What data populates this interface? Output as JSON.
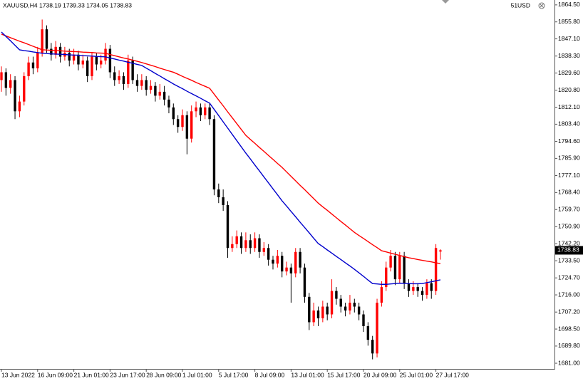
{
  "chart_data": {
    "type": "candlestick",
    "title": "XAUUSD,H4 1738.19 1739.33 1734.05 1738.83",
    "corner_label": "51USD",
    "categories": [
      "13 Jun 2022",
      null,
      null,
      null,
      null,
      null,
      null,
      null,
      "16 Jun 09:00",
      null,
      null,
      null,
      null,
      null,
      null,
      null,
      "21 Jun 01:00",
      null,
      null,
      null,
      null,
      null,
      null,
      null,
      "23 Jun 17:00",
      null,
      null,
      null,
      null,
      null,
      null,
      null,
      "28 Jun 09:00",
      null,
      null,
      null,
      null,
      null,
      null,
      null,
      "1 Jul 01:00",
      null,
      null,
      null,
      null,
      null,
      null,
      null,
      "5 Jul 17:00",
      null,
      null,
      null,
      null,
      null,
      null,
      null,
      "8 Jul 09:00",
      null,
      null,
      null,
      null,
      null,
      null,
      null,
      "13 Jul 01:00",
      null,
      null,
      null,
      null,
      null,
      null,
      null,
      "15 Jul 17:00",
      null,
      null,
      null,
      null,
      null,
      null,
      null,
      "20 Jul 09:00",
      null,
      null,
      null,
      null,
      null,
      null,
      null,
      "25 Jul 01:00",
      null,
      null,
      null,
      null,
      null,
      null,
      null,
      "27 Jul 17:00",
      null
    ],
    "open": [
      1826,
      1830,
      1822,
      1826,
      1810,
      1815,
      1828,
      1835,
      1832,
      1840,
      1852,
      1842,
      1839,
      1843,
      1838,
      1840,
      1836,
      1839,
      1834,
      1836,
      1828,
      1838,
      1834,
      1836,
      1842,
      1830,
      1826,
      1828,
      1824,
      1836,
      1826,
      1823,
      1826,
      1821,
      1823,
      1818,
      1820,
      1816,
      1812,
      1806,
      1802,
      1808,
      1796,
      1810,
      1812,
      1808,
      1812,
      1806,
      1770,
      1766,
      1762,
      1740,
      1742,
      1746,
      1740,
      1744,
      1740,
      1745,
      1738,
      1740,
      1734,
      1732,
      1736,
      1728,
      1730,
      1727,
      1738,
      1730,
      1715,
      1702,
      1708,
      1704,
      1710,
      1706,
      1718,
      1714,
      1710,
      1708,
      1712,
      1710,
      1706,
      1700,
      1693,
      1686,
      1712,
      1720,
      1730,
      1736,
      1724,
      1736,
      1722,
      1718,
      1720,
      1718,
      1716,
      1722,
      1718,
      1738.19
    ],
    "high": [
      1833,
      1832,
      1829,
      1828,
      1818,
      1830,
      1838,
      1838,
      1843,
      1857,
      1854,
      1845,
      1846,
      1845,
      1843,
      1842,
      1842,
      1841,
      1839,
      1838,
      1840,
      1840,
      1839,
      1845,
      1844,
      1833,
      1831,
      1830,
      1839,
      1838,
      1829,
      1829,
      1828,
      1826,
      1825,
      1824,
      1823,
      1818,
      1814,
      1808,
      1811,
      1810,
      1813,
      1815,
      1814,
      1814,
      1814,
      1808,
      1773,
      1770,
      1764,
      1746,
      1749,
      1748,
      1748,
      1747,
      1748,
      1747,
      1743,
      1742,
      1736,
      1739,
      1738,
      1733,
      1732,
      1740,
      1740,
      1732,
      1717,
      1712,
      1710,
      1713,
      1712,
      1724,
      1720,
      1716,
      1712,
      1716,
      1714,
      1712,
      1708,
      1702,
      1695,
      1714,
      1723,
      1733,
      1739,
      1738,
      1738,
      1738,
      1724,
      1723,
      1722,
      1720,
      1724,
      1724,
      1742,
      1739.33
    ],
    "low": [
      1820,
      1818,
      1819,
      1806,
      1807,
      1813,
      1826,
      1829,
      1830,
      1838,
      1840,
      1836,
      1837,
      1835,
      1836,
      1833,
      1834,
      1831,
      1832,
      1825,
      1826,
      1831,
      1832,
      1834,
      1827,
      1823,
      1824,
      1821,
      1822,
      1824,
      1820,
      1821,
      1818,
      1819,
      1815,
      1816,
      1813,
      1809,
      1803,
      1799,
      1800,
      1788,
      1794,
      1807,
      1805,
      1806,
      1803,
      1767,
      1763,
      1759,
      1735,
      1738,
      1740,
      1737,
      1738,
      1737,
      1738,
      1735,
      1736,
      1731,
      1729,
      1730,
      1725,
      1726,
      1712,
      1725,
      1727,
      1712,
      1698,
      1700,
      1700,
      1702,
      1703,
      1704,
      1711,
      1707,
      1705,
      1706,
      1707,
      1703,
      1697,
      1690,
      1683,
      1684,
      1710,
      1718,
      1728,
      1721,
      1722,
      1719,
      1715,
      1716,
      1715,
      1713,
      1714,
      1714,
      1716,
      1734.05
    ],
    "close": [
      1830,
      1822,
      1826,
      1810,
      1815,
      1828,
      1835,
      1832,
      1840,
      1852,
      1842,
      1839,
      1843,
      1838,
      1840,
      1836,
      1839,
      1834,
      1836,
      1828,
      1838,
      1834,
      1836,
      1842,
      1830,
      1826,
      1828,
      1824,
      1836,
      1826,
      1823,
      1826,
      1821,
      1823,
      1818,
      1820,
      1816,
      1812,
      1806,
      1802,
      1808,
      1796,
      1810,
      1812,
      1808,
      1812,
      1806,
      1770,
      1766,
      1762,
      1740,
      1742,
      1746,
      1740,
      1744,
      1740,
      1745,
      1738,
      1740,
      1734,
      1732,
      1736,
      1728,
      1730,
      1727,
      1738,
      1730,
      1715,
      1702,
      1708,
      1704,
      1710,
      1706,
      1718,
      1714,
      1710,
      1708,
      1712,
      1710,
      1706,
      1700,
      1693,
      1686,
      1712,
      1720,
      1730,
      1736,
      1724,
      1736,
      1722,
      1718,
      1720,
      1718,
      1716,
      1722,
      1718,
      1740,
      1738.83
    ],
    "up_color": "#ff0000",
    "down_color": "#000000",
    "lines": [
      {
        "color": "#ff0000",
        "values": [
          1849.5,
          1848.6,
          1847.7,
          1846.8,
          1845.9,
          1845.1,
          1844.2,
          1843.3,
          1842.4,
          1841.5,
          1841.4,
          1841.2,
          1841.1,
          1841.0,
          1840.8,
          1840.7,
          1840.6,
          1840.5,
          1840.3,
          1840.2,
          1840.1,
          1839.9,
          1839.8,
          1839.7,
          1839.1,
          1838.5,
          1837.9,
          1837.3,
          1836.8,
          1836.2,
          1835.6,
          1835.0,
          1834.3,
          1833.6,
          1832.9,
          1832.1,
          1831.4,
          1830.7,
          1830.0,
          1829.0,
          1827.9,
          1826.9,
          1825.9,
          1824.8,
          1823.8,
          1822.8,
          1821.8,
          1818.8,
          1815.8,
          1812.8,
          1809.7,
          1806.7,
          1803.7,
          1800.7,
          1797.7,
          1795.6,
          1793.6,
          1791.5,
          1789.5,
          1787.4,
          1785.4,
          1783.3,
          1781.3,
          1779.0,
          1776.7,
          1774.4,
          1772.1,
          1769.9,
          1767.6,
          1765.3,
          1763.0,
          1761.1,
          1759.3,
          1757.4,
          1755.5,
          1753.6,
          1751.8,
          1749.9,
          1748.0,
          1746.4,
          1744.9,
          1743.3,
          1741.7,
          1740.2,
          1738.6,
          1738.0,
          1737.4,
          1736.8,
          1736.2,
          1735.6,
          1735.0,
          1734.6,
          1734.1,
          1733.7,
          1733.3,
          1732.9,
          1732.4,
          1732.0
        ]
      },
      {
        "color": "#0000cc",
        "values": [
          1850.6,
          1848.3,
          1846.1,
          1843.8,
          1841.5,
          1841.1,
          1840.8,
          1840.4,
          1840.1,
          1839.7,
          1839.6,
          1839.4,
          1839.3,
          1839.2,
          1839.1,
          1838.9,
          1838.8,
          1838.7,
          1838.5,
          1838.4,
          1838.3,
          1838.1,
          1838.0,
          1837.9,
          1837.3,
          1836.8,
          1836.2,
          1835.7,
          1835.1,
          1834.6,
          1834.0,
          1833.5,
          1832.1,
          1830.8,
          1829.4,
          1828.1,
          1826.7,
          1825.4,
          1824.0,
          1822.8,
          1821.6,
          1820.3,
          1819.1,
          1817.9,
          1816.7,
          1815.4,
          1814.2,
          1811.0,
          1807.8,
          1804.6,
          1801.4,
          1798.2,
          1795.0,
          1791.8,
          1788.6,
          1785.6,
          1782.5,
          1779.5,
          1776.4,
          1773.4,
          1770.3,
          1767.3,
          1764.2,
          1761.5,
          1758.7,
          1756.0,
          1753.2,
          1750.5,
          1747.8,
          1745.0,
          1742.3,
          1740.7,
          1739.0,
          1737.4,
          1735.7,
          1734.1,
          1732.4,
          1730.8,
          1729.1,
          1727.3,
          1725.5,
          1723.6,
          1721.8,
          1721.6,
          1721.4,
          1721.4,
          1721.6,
          1721.8,
          1722.0,
          1721.9,
          1721.8,
          1721.7,
          1721.7,
          1721.8,
          1722.3,
          1722.7,
          1723.2,
          1723.7
        ]
      }
    ],
    "ylim": [
      1678.1,
      1867.0
    ],
    "yticks": [
      {
        "value": 1864.5,
        "label": "1864.50"
      },
      {
        "value": 1855.8,
        "label": "1855.80"
      },
      {
        "value": 1847.1,
        "label": "1847.10"
      },
      {
        "value": 1838.3,
        "label": "1838.30"
      },
      {
        "value": 1829.6,
        "label": "1829.60"
      },
      {
        "value": 1820.8,
        "label": "1820.80"
      },
      {
        "value": 1812.1,
        "label": "1812.10"
      },
      {
        "value": 1803.4,
        "label": "1803.40"
      },
      {
        "value": 1794.6,
        "label": "1794.60"
      },
      {
        "value": 1785.9,
        "label": "1785.90"
      },
      {
        "value": 1777.1,
        "label": "1777.10"
      },
      {
        "value": 1768.4,
        "label": "1768.40"
      },
      {
        "value": 1759.7,
        "label": "1759.70"
      },
      {
        "value": 1750.9,
        "label": "1750.90"
      },
      {
        "value": 1742.2,
        "label": "1742.20"
      },
      {
        "value": 1733.5,
        "label": "1733.50"
      },
      {
        "value": 1724.7,
        "label": "1724.70"
      },
      {
        "value": 1716.0,
        "label": "1716.00"
      },
      {
        "value": 1707.2,
        "label": "1707.20"
      },
      {
        "value": 1698.5,
        "label": "1698.50"
      },
      {
        "value": 1689.8,
        "label": "1689.80"
      },
      {
        "value": 1681.0,
        "label": "1681.00"
      }
    ],
    "grid": false
  }
}
